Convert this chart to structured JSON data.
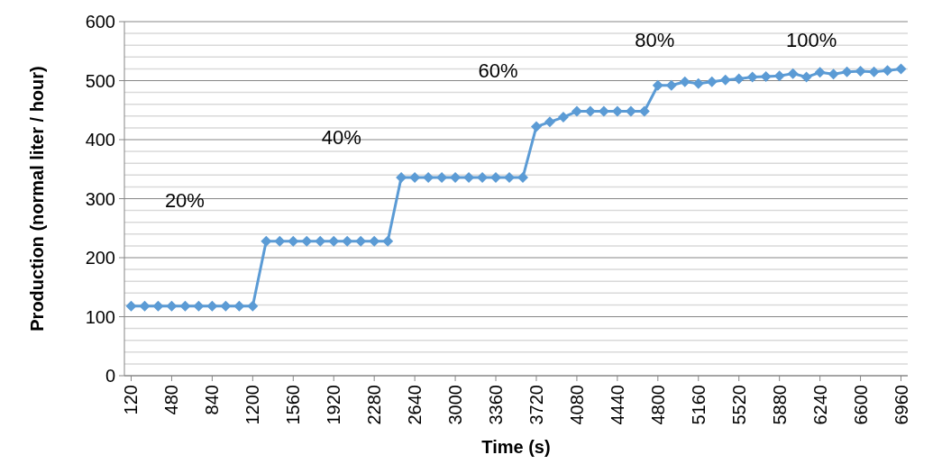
{
  "chart_data": {
    "type": "line",
    "xlabel": "Time (s)",
    "ylabel": "Production (normal liter / hour)",
    "x": [
      120,
      240,
      360,
      480,
      600,
      720,
      840,
      960,
      1080,
      1200,
      1320,
      1440,
      1560,
      1680,
      1800,
      1920,
      2040,
      2160,
      2280,
      2400,
      2520,
      2640,
      2760,
      2880,
      3000,
      3120,
      3240,
      3360,
      3480,
      3600,
      3720,
      3840,
      3960,
      4080,
      4200,
      4320,
      4440,
      4560,
      4680,
      4800,
      4920,
      5040,
      5160,
      5280,
      5400,
      5520,
      5640,
      5760,
      5880,
      6000,
      6120,
      6240,
      6360,
      6480,
      6600,
      6720,
      6840,
      6960
    ],
    "series": [
      {
        "color": "#5b9bd5",
        "values": [
          118,
          118,
          118,
          118,
          118,
          118,
          118,
          118,
          118,
          118,
          228,
          228,
          228,
          228,
          228,
          228,
          228,
          228,
          228,
          228,
          336,
          336,
          336,
          336,
          336,
          336,
          336,
          336,
          336,
          336,
          422,
          430,
          438,
          448,
          448,
          448,
          448,
          448,
          448,
          492,
          492,
          498,
          495,
          498,
          501,
          503,
          506,
          507,
          508,
          512,
          506,
          514,
          511,
          515,
          516,
          515,
          517,
          520
        ]
      }
    ],
    "xlim": [
      60,
      7020
    ],
    "xticks": [
      120,
      480,
      840,
      1200,
      1560,
      1920,
      2280,
      2640,
      3000,
      3360,
      3720,
      4080,
      4440,
      4800,
      5160,
      5520,
      5880,
      6240,
      6600,
      6960
    ],
    "ylim": [
      0,
      600
    ],
    "yticks": [
      0,
      {
        "value": 20,
        "label": null
      },
      {
        "value": 40,
        "label": null
      },
      {
        "value": 60,
        "label": null
      },
      {
        "value": 80,
        "label": null
      },
      100,
      {
        "value": 120,
        "label": null
      },
      {
        "value": 140,
        "label": null
      },
      {
        "value": 160,
        "label": null
      },
      {
        "value": 180,
        "label": null
      },
      200,
      {
        "value": 220,
        "label": null
      },
      {
        "value": 240,
        "label": null
      },
      {
        "value": 260,
        "label": null
      },
      {
        "value": 280,
        "label": null
      },
      300,
      {
        "value": 320,
        "label": null
      },
      {
        "value": 340,
        "label": null
      },
      {
        "value": 360,
        "label": null
      },
      {
        "value": 380,
        "label": null
      },
      400,
      {
        "value": 420,
        "label": null
      },
      {
        "value": 440,
        "label": null
      },
      {
        "value": 460,
        "label": null
      },
      {
        "value": 480,
        "label": null
      },
      500,
      {
        "value": 520,
        "label": null
      },
      {
        "value": 540,
        "label": null
      },
      {
        "value": 560,
        "label": null
      },
      {
        "value": 580,
        "label": null
      },
      600
    ],
    "grid": "y",
    "marker": "diamond",
    "line_style": "solid",
    "annotations": [
      "20%",
      "40%",
      "60%",
      "80%",
      "100%"
    ]
  }
}
